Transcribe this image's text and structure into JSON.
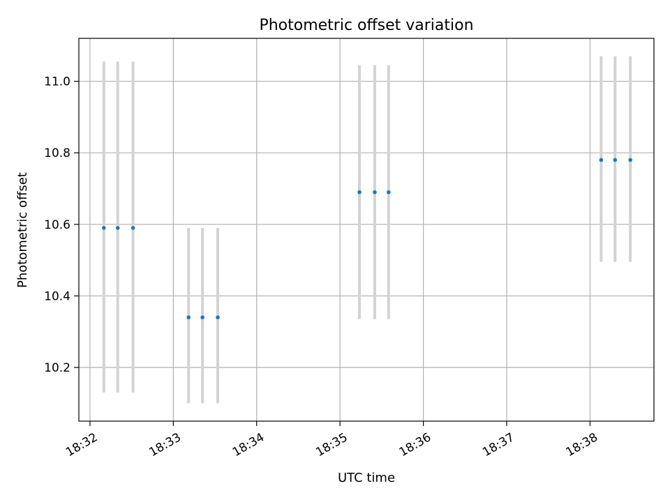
{
  "chart_data": {
    "type": "scatter",
    "title": "Photometric offset variation",
    "xlabel": "UTC time",
    "ylabel": "Photometric offset",
    "x_unit": "HH:MM (UTC)",
    "xlim": [
      "18:31:52",
      "18:38:46"
    ],
    "ylim": [
      10.05,
      11.12
    ],
    "x_ticks": [
      "18:32",
      "18:33",
      "18:34",
      "18:35",
      "18:36",
      "18:37",
      "18:38"
    ],
    "y_ticks": [
      "10.2",
      "10.4",
      "10.6",
      "10.8",
      "11.0"
    ],
    "grid": true,
    "marker_color": "#1f77b4",
    "errorbar_color": "#d3d3d3",
    "points": [
      {
        "x": "18:32:10",
        "y": 10.59,
        "err_low": 10.13,
        "err_high": 11.055
      },
      {
        "x": "18:32:20",
        "y": 10.59,
        "err_low": 10.13,
        "err_high": 11.055
      },
      {
        "x": "18:32:31",
        "y": 10.59,
        "err_low": 10.13,
        "err_high": 11.055
      },
      {
        "x": "18:33:11",
        "y": 10.34,
        "err_low": 10.1,
        "err_high": 10.59
      },
      {
        "x": "18:33:21",
        "y": 10.34,
        "err_low": 10.1,
        "err_high": 10.59
      },
      {
        "x": "18:33:32",
        "y": 10.34,
        "err_low": 10.1,
        "err_high": 10.59
      },
      {
        "x": "18:35:14",
        "y": 10.69,
        "err_low": 10.335,
        "err_high": 11.045
      },
      {
        "x": "18:35:25",
        "y": 10.69,
        "err_low": 10.335,
        "err_high": 11.045
      },
      {
        "x": "18:35:35",
        "y": 10.69,
        "err_low": 10.335,
        "err_high": 11.045
      },
      {
        "x": "18:38:08",
        "y": 10.78,
        "err_low": 10.495,
        "err_high": 11.07
      },
      {
        "x": "18:38:18",
        "y": 10.78,
        "err_low": 10.495,
        "err_high": 11.07
      },
      {
        "x": "18:38:29",
        "y": 10.78,
        "err_low": 10.495,
        "err_high": 11.07
      }
    ]
  }
}
